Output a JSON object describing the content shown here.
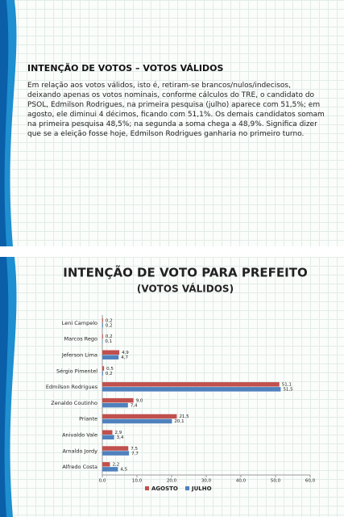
{
  "document": {
    "heading": "INTENÇÃO DE VOTOS – VOTOS VÁLIDOS",
    "paragraph": "Em relação aos votos válidos, isto é, retiram-se brancos/nulos/indecisos, deixando apenas os votos nominais, conforme cálculos do TRE, o candidato do PSOL, Edmilson Rodrigues, na primeira pesquisa (julho) aparece com 51,5%; em agosto, ele diminui 4 décimos, ficando com 51,1%. Os demais candidatos somam na primeira pesquisa 48,5%; na segunda a soma chega a 48,9%. Significa dizer que se a eleição fosse hoje, Edmilson Rodrigues ganharia no primeiro turno."
  },
  "chart_data": {
    "type": "hbar",
    "title": "INTENÇÃO DE VOTO PARA PREFEITO",
    "subtitle": "(VOTOS VÁLIDOS)",
    "categories": [
      "Leni Campelo",
      "Marcos Rego",
      "Jeferson Lima",
      "Sérgio Pimentel",
      "Edmilson Rodrigues",
      "Zenaldo Coutinho",
      "Priante",
      "Anivaldo Vale",
      "Arnaldo Jordy",
      "Alfredo Costa"
    ],
    "series": [
      {
        "name": "AGOSTO",
        "color": "#c0504d",
        "values": [
          0.2,
          0.2,
          4.9,
          0.5,
          51.1,
          9.0,
          21.5,
          2.9,
          7.5,
          2.2
        ],
        "value_labels": [
          "0,2",
          "0,2",
          "4,9",
          "0,5",
          "51,1",
          "9,0",
          "21,5",
          "2,9",
          "7,5",
          "2,2"
        ]
      },
      {
        "name": "JULHO",
        "color": "#4f81bd",
        "values": [
          0.2,
          0.1,
          4.7,
          0.2,
          51.5,
          7.4,
          20.1,
          3.4,
          7.7,
          4.5
        ],
        "value_labels": [
          "0,2",
          "0,1",
          "4,7",
          "0,2",
          "51,5",
          "7,4",
          "20,1",
          "3,4",
          "7,7",
          "4,5"
        ]
      }
    ],
    "xlim": [
      0,
      60
    ],
    "xticks": [
      {
        "value": 0,
        "label": "0,0"
      },
      {
        "value": 10,
        "label": "10,0"
      },
      {
        "value": 20,
        "label": "20,0"
      },
      {
        "value": 30,
        "label": "30,0"
      },
      {
        "value": 40,
        "label": "40,0"
      },
      {
        "value": 50,
        "label": "50,0"
      },
      {
        "value": 60,
        "label": "60,0"
      }
    ],
    "legend": "bottom"
  }
}
